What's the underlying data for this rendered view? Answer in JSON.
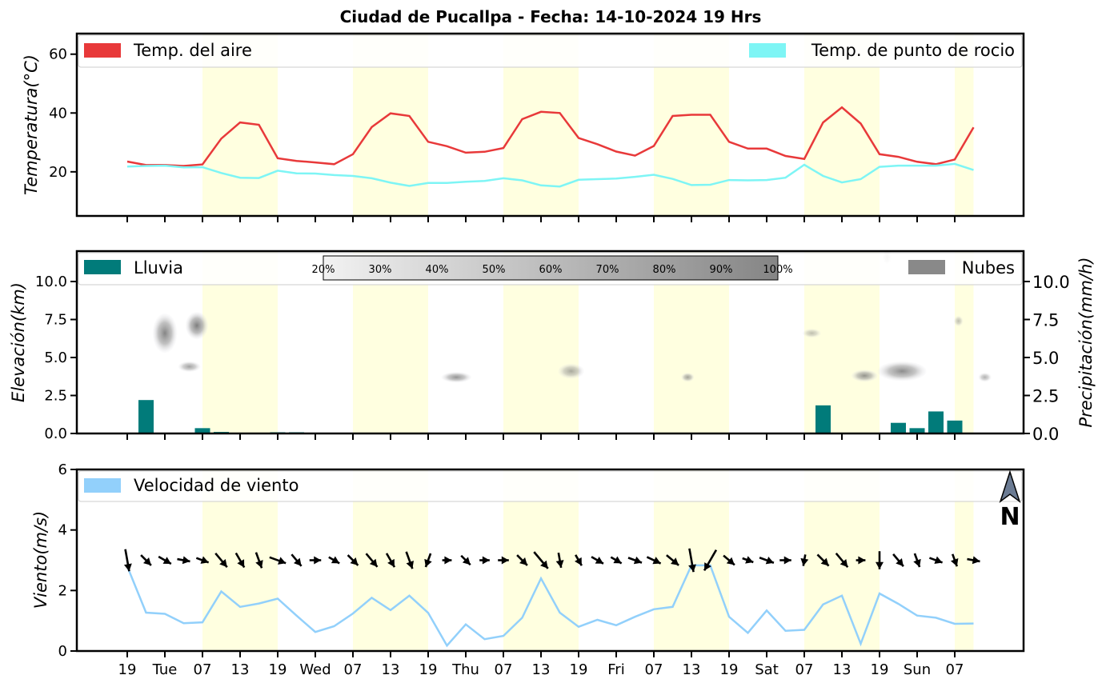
{
  "title": "Ciudad de Pucallpa   -   Fecha: 14-10-2024 19 Hrs",
  "chart_data": [
    {
      "type": "line",
      "ylabel": "Temperatura(°C)",
      "ylim": [
        5,
        67
      ],
      "yticks": [
        20,
        40,
        60
      ],
      "legend": [
        "Temp. del aire",
        "Temp. de punto de rocio"
      ],
      "series": [
        {
          "name": "Temp. del aire",
          "color": "#e8393a",
          "values": [
            23.5,
            22.3,
            22.3,
            22,
            22.5,
            31.3,
            36.8,
            36,
            24.6,
            23.7,
            23.2,
            22.6,
            26,
            35.2,
            39.9,
            39,
            30.2,
            28.7,
            26.5,
            26.8,
            28.1,
            37.9,
            40.4,
            40,
            31.5,
            29.4,
            26.9,
            25.5,
            28.8,
            39,
            39.4,
            39.4,
            30.2,
            27.9,
            27.9,
            25.4,
            24.4,
            36.8,
            41.9,
            36.4,
            26,
            25.1,
            23.4,
            22.6,
            24.2,
            35.1
          ]
        },
        {
          "name": "Temp. de punto de rocio",
          "color": "#7ef5f5",
          "values": [
            21.8,
            22,
            22.1,
            21.5,
            21.6,
            19.6,
            18,
            17.9,
            20.4,
            19.5,
            19.4,
            18.9,
            18.6,
            17.8,
            16.3,
            15.2,
            16.2,
            16.2,
            16.6,
            16.9,
            17.8,
            17.1,
            15.4,
            15,
            17.3,
            17.5,
            17.7,
            18.3,
            19,
            17.6,
            15.5,
            15.6,
            17.2,
            17.1,
            17.2,
            18,
            22.4,
            18.6,
            16.4,
            17.5,
            21.7,
            22.1,
            22.1,
            22.1,
            22.7,
            20.6
          ]
        }
      ]
    },
    {
      "type": "bar",
      "ylabel": "Elevación(km)",
      "ylabel_right": "Precipitación(mm/h)",
      "ylim": [
        0,
        12
      ],
      "yticks": [
        "0.0",
        "2.5",
        "5.0",
        "7.5",
        "10.0"
      ],
      "legend": [
        "Lluvia",
        "Nubes"
      ],
      "colorbar_labels": [
        "20%",
        "30%",
        "40%",
        "50%",
        "60%",
        "70%",
        "80%",
        "90%",
        "100%"
      ],
      "rain_color": "#017b7a",
      "rain_values": [
        0,
        2.2,
        0,
        0,
        0.35,
        0.1,
        0,
        0,
        0.08,
        0.08,
        0,
        0,
        0,
        0,
        0,
        0,
        0,
        0,
        0,
        0,
        0,
        0,
        0,
        0,
        0.03,
        0,
        0,
        0,
        0,
        0,
        0,
        0,
        0,
        0,
        0,
        0,
        0.05,
        1.85,
        0,
        0,
        0,
        0.7,
        0.35,
        1.45,
        0.85,
        0
      ],
      "clouds": [
        {
          "x": 2.0,
          "y": 6.6,
          "rx": 0.65,
          "ry": 1.3,
          "density": 0.65
        },
        {
          "x": 3.7,
          "y": 7.1,
          "rx": 0.6,
          "ry": 0.9,
          "density": 0.7
        },
        {
          "x": 3.3,
          "y": 4.4,
          "rx": 0.6,
          "ry": 0.35,
          "density": 0.45
        },
        {
          "x": 17.5,
          "y": 3.7,
          "rx": 0.8,
          "ry": 0.35,
          "density": 0.55
        },
        {
          "x": 23.6,
          "y": 4.1,
          "rx": 0.7,
          "ry": 0.5,
          "density": 0.4
        },
        {
          "x": 29.8,
          "y": 3.7,
          "rx": 0.35,
          "ry": 0.3,
          "density": 0.45
        },
        {
          "x": 36.4,
          "y": 6.6,
          "rx": 0.5,
          "ry": 0.3,
          "density": 0.25
        },
        {
          "x": 39.2,
          "y": 3.8,
          "rx": 0.7,
          "ry": 0.4,
          "density": 0.55
        },
        {
          "x": 41.2,
          "y": 4.1,
          "rx": 1.3,
          "ry": 0.65,
          "density": 0.6
        },
        {
          "x": 44.2,
          "y": 7.4,
          "rx": 0.25,
          "ry": 0.35,
          "density": 0.25
        },
        {
          "x": 45.6,
          "y": 3.7,
          "rx": 0.35,
          "ry": 0.3,
          "density": 0.35
        },
        {
          "x": 40.4,
          "y": 11.6,
          "rx": 0.25,
          "ry": 0.5,
          "density": 0.2
        }
      ]
    },
    {
      "type": "line",
      "ylabel": "Viento(m/s)",
      "ylim": [
        0,
        6
      ],
      "yticks": [
        0,
        2,
        4,
        6
      ],
      "legend": [
        "Velocidad de viento"
      ],
      "north_label": "N",
      "series": [
        {
          "name": "Velocidad de viento",
          "color": "#92d0fb",
          "values": [
            2.8,
            1.27,
            1.23,
            0.92,
            0.95,
            1.97,
            1.46,
            1.57,
            1.73,
            1.17,
            0.63,
            0.82,
            1.24,
            1.76,
            1.35,
            1.83,
            1.26,
            0.18,
            0.88,
            0.39,
            0.5,
            1.1,
            2.4,
            1.27,
            0.8,
            1.03,
            0.85,
            1.13,
            1.38,
            1.46,
            2.83,
            2.83,
            1.13,
            0.6,
            1.34,
            0.67,
            0.7,
            1.54,
            1.83,
            0.24,
            1.9,
            1.56,
            1.17,
            1.1,
            0.9,
            0.91
          ]
        }
      ],
      "wind_dir_deg": [
        170,
        135,
        120,
        100,
        110,
        140,
        150,
        160,
        110,
        140,
        90,
        120,
        135,
        140,
        150,
        160,
        200,
        90,
        135,
        90,
        90,
        135,
        140,
        170,
        150,
        120,
        120,
        110,
        115,
        130,
        170,
        210,
        130,
        110,
        110,
        90,
        190,
        135,
        140,
        90,
        180,
        140,
        160,
        110,
        160,
        100
      ],
      "wind_len": [
        1.0,
        0.45,
        0.45,
        0.35,
        0.35,
        0.7,
        0.6,
        0.6,
        0.65,
        0.5,
        0.25,
        0.3,
        0.45,
        0.65,
        0.55,
        0.7,
        0.45,
        0.1,
        0.35,
        0.15,
        0.2,
        0.45,
        0.95,
        0.5,
        0.3,
        0.4,
        0.3,
        0.45,
        0.5,
        0.55,
        1.1,
        1.1,
        0.45,
        0.25,
        0.5,
        0.25,
        0.25,
        0.55,
        0.7,
        0.1,
        0.7,
        0.55,
        0.45,
        0.4,
        0.35,
        0.35
      ]
    }
  ],
  "xaxis": {
    "tick_labels": [
      "19",
      "Tue",
      "07",
      "13",
      "19",
      "Wed",
      "07",
      "13",
      "19",
      "Thu",
      "07",
      "13",
      "19",
      "Fri",
      "07",
      "13",
      "19",
      "Sat",
      "07",
      "13",
      "19",
      "Sun",
      "07"
    ],
    "hours_per_step": 3,
    "first_hour": 19
  },
  "daylight_bands": [
    [
      4,
      8
    ],
    [
      12,
      16
    ],
    [
      20,
      24
    ],
    [
      28,
      32
    ],
    [
      36,
      40
    ],
    [
      44,
      45
    ]
  ],
  "daylight_color": "#ffffe0"
}
